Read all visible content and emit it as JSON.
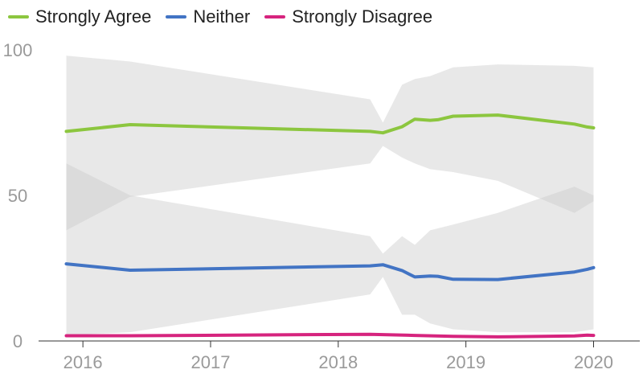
{
  "chart_data": {
    "type": "line",
    "title": "",
    "xlabel": "",
    "ylabel": "",
    "xlim": [
      2015.8,
      2020.4
    ],
    "ylim": [
      0,
      100
    ],
    "x_ticks": [
      2016,
      2017,
      2018,
      2019,
      2020
    ],
    "x_tick_labels": [
      "2016",
      "2017",
      "2018",
      "2019",
      "2020"
    ],
    "y_ticks": [
      0,
      50,
      100
    ],
    "y_tick_labels": [
      "0",
      "50",
      "100"
    ],
    "legend_position": "top-left",
    "grid": false,
    "series": [
      {
        "name": "Strongly Agree",
        "color": "#8cc63f",
        "points": [
          [
            2015.87,
            72
          ],
          [
            2016.37,
            74.3
          ],
          [
            2018.25,
            72
          ],
          [
            2018.35,
            71.5
          ],
          [
            2018.5,
            73.6
          ],
          [
            2018.6,
            76.2
          ],
          [
            2018.72,
            75.8
          ],
          [
            2018.78,
            76
          ],
          [
            2018.9,
            77.2
          ],
          [
            2019.25,
            77.6
          ],
          [
            2019.85,
            74.5
          ],
          [
            2019.95,
            73.5
          ],
          [
            2020.0,
            73.2
          ]
        ],
        "band": [
          [
            2015.87,
            38,
            98
          ],
          [
            2016.37,
            49.5,
            96
          ],
          [
            2018.25,
            61,
            83
          ],
          [
            2018.35,
            67,
            75
          ],
          [
            2018.5,
            63,
            88
          ],
          [
            2018.6,
            61,
            90
          ],
          [
            2018.72,
            59,
            91
          ],
          [
            2018.9,
            58,
            94
          ],
          [
            2019.25,
            55,
            95
          ],
          [
            2019.85,
            44,
            94.5
          ],
          [
            2020.0,
            48,
            94
          ]
        ]
      },
      {
        "name": "Neither",
        "color": "#4274c4",
        "points": [
          [
            2015.87,
            26.5
          ],
          [
            2016.37,
            24.3
          ],
          [
            2018.25,
            25.8
          ],
          [
            2018.35,
            26.2
          ],
          [
            2018.5,
            24.2
          ],
          [
            2018.6,
            22
          ],
          [
            2018.72,
            22.3
          ],
          [
            2018.78,
            22.2
          ],
          [
            2018.9,
            21.2
          ],
          [
            2019.25,
            21.1
          ],
          [
            2019.85,
            23.7
          ],
          [
            2019.95,
            24.6
          ],
          [
            2020.0,
            25.2
          ]
        ],
        "band": [
          [
            2015.87,
            2,
            61
          ],
          [
            2016.37,
            3,
            50
          ],
          [
            2018.25,
            16,
            36
          ],
          [
            2018.35,
            22,
            30
          ],
          [
            2018.5,
            9,
            36
          ],
          [
            2018.6,
            9,
            33
          ],
          [
            2018.72,
            6,
            38
          ],
          [
            2018.9,
            4,
            40
          ],
          [
            2019.25,
            3,
            44
          ],
          [
            2019.85,
            3,
            53
          ],
          [
            2020.0,
            4,
            50
          ]
        ]
      },
      {
        "name": "Strongly Disagree",
        "color": "#d6247e",
        "points": [
          [
            2015.87,
            1.8
          ],
          [
            2016.37,
            1.8
          ],
          [
            2018.25,
            2.3
          ],
          [
            2018.6,
            1.9
          ],
          [
            2018.9,
            1.6
          ],
          [
            2019.25,
            1.4
          ],
          [
            2019.85,
            1.7
          ],
          [
            2019.95,
            2.0
          ],
          [
            2020.0,
            1.9
          ]
        ]
      }
    ]
  }
}
